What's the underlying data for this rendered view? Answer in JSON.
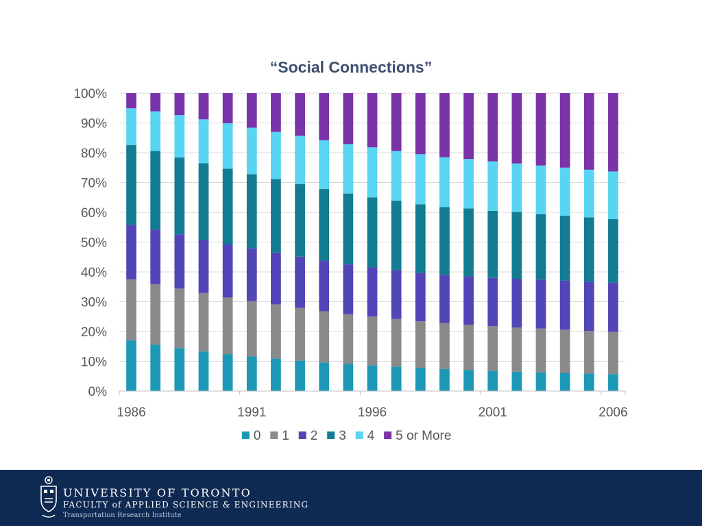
{
  "chart_data": {
    "type": "stacked-bar-100",
    "title": "“Social Connections”",
    "categories": [
      "1986",
      "1987",
      "1988",
      "1989",
      "1990",
      "1991",
      "1992",
      "1993",
      "1994",
      "1995",
      "1996",
      "1997",
      "1998",
      "1999",
      "2000",
      "2001",
      "2002",
      "2003",
      "2004",
      "2005",
      "2006"
    ],
    "x_tick_labels": [
      "1986",
      "1991",
      "1996",
      "2001",
      "2006"
    ],
    "y_tick_labels": [
      "0%",
      "10%",
      "20%",
      "30%",
      "40%",
      "50%",
      "60%",
      "70%",
      "80%",
      "90%",
      "100%"
    ],
    "ylim": [
      0,
      100
    ],
    "series": [
      {
        "name": "0",
        "color": "#1c98b6",
        "values": [
          17,
          15.6,
          14.4,
          13.3,
          12.4,
          11.6,
          10.9,
          10.2,
          9.6,
          9.1,
          8.6,
          8.2,
          7.8,
          7.4,
          7.1,
          6.8,
          6.5,
          6.3,
          6.1,
          5.9,
          5.7
        ]
      },
      {
        "name": "1",
        "color": "#8a8a8a",
        "values": [
          20.5,
          20.3,
          20,
          19.6,
          19,
          18.6,
          18.2,
          17.7,
          17.2,
          16.7,
          16.4,
          16,
          15.6,
          15.4,
          15.2,
          15,
          14.8,
          14.7,
          14.5,
          14.3,
          14.2
        ]
      },
      {
        "name": "2",
        "color": "#5145b8",
        "values": [
          18.3,
          18.3,
          18.2,
          17.9,
          17.8,
          17.7,
          17.4,
          17.2,
          17,
          16.7,
          16.5,
          16.4,
          16.3,
          16.2,
          16.2,
          16.2,
          16.4,
          16.4,
          16.5,
          16.5,
          16.5
        ]
      },
      {
        "name": "3",
        "color": "#137c92",
        "values": [
          26.8,
          26.4,
          25.8,
          25.7,
          25.4,
          24.9,
          24.7,
          24.4,
          24,
          23.8,
          23.5,
          23.3,
          23,
          22.8,
          22.8,
          22.5,
          22.4,
          22,
          21.8,
          21.6,
          21.3
        ]
      },
      {
        "name": "4",
        "color": "#57d5f2",
        "values": [
          12.3,
          13.3,
          14.2,
          14.7,
          15.3,
          15.6,
          15.8,
          16.2,
          16.4,
          16.6,
          16.8,
          16.7,
          16.8,
          16.7,
          16.6,
          16.6,
          16.3,
          16.3,
          16.1,
          16,
          16
        ]
      },
      {
        "name": "5 or More",
        "color": "#7a33a8",
        "values": [
          5.1,
          6.1,
          7.4,
          8.8,
          10.1,
          11.6,
          13,
          14.3,
          15.8,
          17.1,
          18.2,
          19.4,
          20.5,
          21.5,
          22.1,
          22.9,
          23.6,
          24.3,
          25,
          25.7,
          26.3
        ]
      }
    ]
  },
  "footer": {
    "university": "UNIVERSITY OF TORONTO",
    "faculty": "FACULTY of APPLIED SCIENCE & ENGINEERING",
    "institute": "Transportation Research Institute",
    "crest_icon": "crest-icon",
    "background_color": "#0f2a52"
  }
}
